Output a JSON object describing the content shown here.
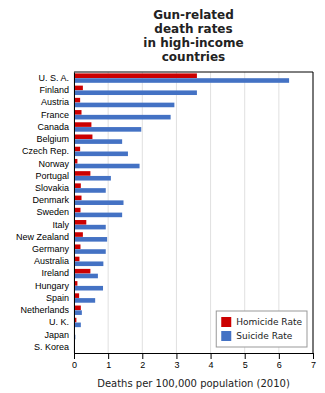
{
  "chart_data": {
    "type": "bar",
    "orientation": "horizontal",
    "title": "Gun-related\ndeath rates\nin high-income\ncountries",
    "xlabel": "Deaths per 100,000 population (2010)",
    "categories": [
      "S. Korea",
      "Japan",
      "U. K.",
      "Netherlands",
      "Spain",
      "Hungary",
      "Ireland",
      "Australia",
      "Germany",
      "New Zealand",
      "Italy",
      "Sweden",
      "Denmark",
      "Slovakia",
      "Portugal",
      "Norway",
      "Czech Rep.",
      "Belgium",
      "Canada",
      "France",
      "Austria",
      "Finland",
      "U. S. A."
    ],
    "series": [
      {
        "name": "Homicide Rate",
        "color": "#cc0000",
        "values": [
          0.0,
          0.0,
          0.07,
          0.2,
          0.15,
          0.1,
          0.48,
          0.16,
          0.19,
          0.26,
          0.36,
          0.19,
          0.22,
          0.2,
          0.48,
          0.1,
          0.18,
          0.54,
          0.51,
          0.22,
          0.18,
          0.26,
          3.6
        ]
      },
      {
        "name": "Suicide Rate",
        "color": "#4472c4",
        "values": [
          0.0,
          0.04,
          0.2,
          0.23,
          0.62,
          0.85,
          0.7,
          0.86,
          0.93,
          0.97,
          0.93,
          1.41,
          1.45,
          0.93,
          1.08,
          1.92,
          1.58,
          1.41,
          1.97,
          2.83,
          2.94,
          3.6,
          6.3
        ]
      }
    ],
    "xlim": [
      0,
      7
    ],
    "xticks": [
      0,
      1,
      2,
      3,
      4,
      5,
      6,
      7
    ],
    "grid": true,
    "legend": "lower right"
  }
}
